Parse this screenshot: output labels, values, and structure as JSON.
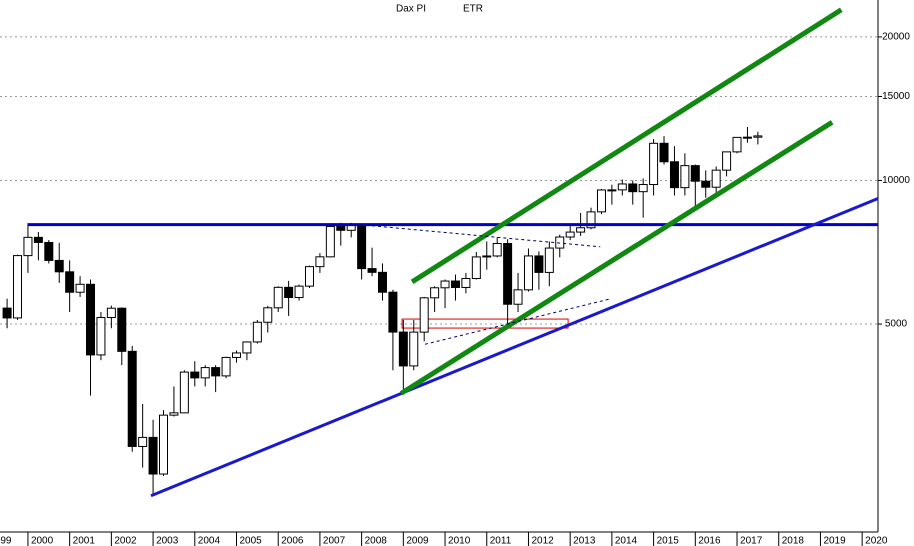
{
  "chart_data": {
    "type": "candlestick",
    "title": "Dax PI",
    "subtitle": "ETR",
    "log_scale": true,
    "grid": true,
    "xlim": [
      1999.33,
      2020.38
    ],
    "ylim": [
      1850,
      23900
    ],
    "xticks": [
      1999,
      2000,
      2001,
      2002,
      2003,
      2004,
      2005,
      2006,
      2007,
      2008,
      2009,
      2010,
      2011,
      2012,
      2013,
      2014,
      2015,
      2016,
      2017,
      2018,
      2019,
      2020
    ],
    "yticks": [
      5000,
      10000,
      15000,
      20000
    ],
    "up_color": "#ffffff",
    "down_color": "#000000",
    "x": [
      1999.5,
      1999.75,
      2000,
      2000.25,
      2000.5,
      2000.75,
      2001,
      2001.25,
      2001.5,
      2001.75,
      2002,
      2002.25,
      2002.5,
      2002.75,
      2003,
      2003.25,
      2003.5,
      2003.75,
      2004,
      2004.25,
      2004.5,
      2004.75,
      2005,
      2005.25,
      2005.5,
      2005.75,
      2006,
      2006.25,
      2006.5,
      2006.75,
      2007,
      2007.25,
      2007.5,
      2007.75,
      2008,
      2008.25,
      2008.5,
      2008.75,
      2009,
      2009.25,
      2009.5,
      2009.75,
      2010,
      2010.25,
      2010.5,
      2010.75,
      2011,
      2011.25,
      2011.5,
      2011.75,
      2012,
      2012.25,
      2012.5,
      2012.75,
      2013,
      2013.25,
      2013.5,
      2013.75,
      2014,
      2014.25,
      2014.5,
      2014.75,
      2015,
      2015.25,
      2015.5,
      2015.75,
      2016,
      2016.25,
      2016.5,
      2016.75,
      2017,
      2017.25,
      2017.5
    ],
    "open": [
      5400,
      5150,
      6958,
      7599,
      7414,
      6798,
      6434,
      5830,
      6058,
      4308,
      5160,
      5397,
      4383,
      2769,
      2893,
      2424,
      3221,
      3257,
      3965,
      3856,
      4052,
      3893,
      4256,
      4349,
      4586,
      5044,
      5408,
      5970,
      5683,
      6004,
      6597,
      6917,
      8007,
      7862,
      8067,
      6535,
      6418,
      5831,
      4810,
      4085,
      4809,
      5675,
      5957,
      6154,
      5966,
      6229,
      6914,
      6946,
      7376,
      5502,
      5898,
      6947,
      6416,
      7216,
      7612,
      7795,
      7959,
      8594,
      9552,
      9556,
      9833,
      9474,
      9806,
      11966,
      10945,
      9660,
      10743,
      9965,
      9680,
      10511,
      11481,
      12313,
      12325
    ],
    "high": [
      5650,
      6990,
      8136,
      7800,
      7500,
      7400,
      6800,
      6300,
      6200,
      5300,
      5467,
      5420,
      4500,
      3400,
      3150,
      3300,
      3700,
      4000,
      4180,
      4100,
      4100,
      4270,
      4400,
      4600,
      5100,
      5460,
      6000,
      6160,
      6050,
      6630,
      7040,
      8130,
      8150,
      8150,
      8100,
      7230,
      6700,
      5900,
      5100,
      5100,
      5700,
      6000,
      6200,
      6350,
      6400,
      7080,
      7450,
      7600,
      7530,
      6400,
      7200,
      7100,
      7450,
      7700,
      8100,
      8550,
      8770,
      9600,
      9800,
      10050,
      10000,
      10100,
      12220,
      12390,
      11800,
      11400,
      10800,
      10500,
      10700,
      11500,
      12300,
      12950,
      12650
    ],
    "low": [
      4900,
      5100,
      6400,
      6800,
      6700,
      6100,
      5300,
      5700,
      3540,
      4200,
      4900,
      4100,
      2700,
      2500,
      2188,
      2400,
      3200,
      3250,
      3700,
      3700,
      3600,
      3850,
      4150,
      4200,
      4550,
      4800,
      5300,
      5200,
      5600,
      5950,
      6400,
      6900,
      7300,
      7600,
      6200,
      6300,
      5600,
      4000,
      3588,
      4000,
      4600,
      5300,
      5400,
      5600,
      5800,
      6200,
      6500,
      6900,
      4965,
      5300,
      5850,
      5900,
      6000,
      6900,
      7500,
      7650,
      7900,
      8500,
      8900,
      9300,
      8900,
      8355,
      9300,
      10800,
      9300,
      9300,
      8700,
      9200,
      9400,
      10200,
      11400,
      12000,
      11900
    ],
    "close": [
      5150,
      6958,
      7599,
      7414,
      6798,
      6434,
      5830,
      6058,
      4308,
      5160,
      5397,
      4383,
      2769,
      2893,
      2424,
      3221,
      3257,
      3965,
      3856,
      4052,
      3893,
      4256,
      4349,
      4586,
      5044,
      5408,
      5970,
      5683,
      6004,
      6597,
      6917,
      8007,
      7862,
      8067,
      6535,
      6418,
      5831,
      4810,
      4085,
      4809,
      5675,
      5957,
      6154,
      5966,
      6229,
      6914,
      6946,
      7376,
      5502,
      5898,
      6947,
      6416,
      7216,
      7612,
      7795,
      7959,
      8594,
      9552,
      9556,
      9833,
      9474,
      9806,
      11966,
      10945,
      9660,
      10743,
      9965,
      9680,
      10511,
      11481,
      12313,
      12325,
      12400
    ],
    "lines": [
      {
        "color": "#0000cc",
        "x": [
          2000,
          2020.38
        ],
        "y": [
          8080,
          8080
        ]
      },
      {
        "color": "#1a1acc",
        "x": [
          2002.95,
          2020.38
        ],
        "y": [
          2183,
          9165
        ]
      },
      {
        "color": "#118811",
        "x": [
          2008.95,
          2019.28
        ],
        "y": [
          3579,
          13245
        ]
      },
      {
        "color": "#118811",
        "x": [
          2009.21,
          2019.5
        ],
        "y": [
          6130,
          22800
        ]
      },
      {
        "color": "#000066",
        "dashed": true,
        "x": [
          2007.96,
          2013.72
        ],
        "y": [
          8080,
          7260
        ]
      },
      {
        "color": "#000066",
        "dashed": true,
        "x": [
          2009.52,
          2013.96
        ],
        "y": [
          4535,
          5646
        ]
      }
    ],
    "rects": [
      {
        "color": "#dd0000",
        "x": [
          2008.97,
          2012.95
        ],
        "y": [
          4904,
          5122
        ]
      }
    ]
  }
}
